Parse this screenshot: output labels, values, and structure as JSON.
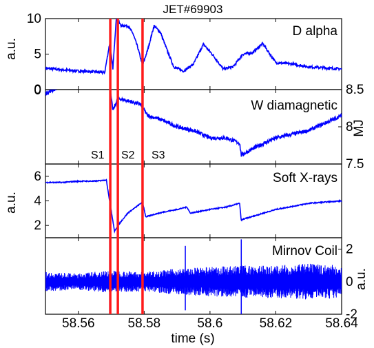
{
  "chart_data": [
    {
      "type": "line",
      "title": "JET#69903",
      "panel_label": "D alpha",
      "ylabel": "a.u.",
      "ylim": [
        0,
        10
      ],
      "yticks": [
        "0",
        "5",
        "10"
      ],
      "series": [
        {
          "x": [
            58.55,
            58.555,
            58.56,
            58.565,
            58.568,
            58.5695,
            58.5705,
            58.5715,
            58.573,
            58.575,
            58.5765,
            58.578,
            58.5795,
            58.581,
            58.583,
            58.585,
            58.587,
            58.589,
            58.592,
            58.595,
            58.598,
            58.601,
            58.604,
            58.607,
            58.61,
            58.613,
            58.616,
            58.62,
            58.625,
            58.63,
            58.64
          ],
          "y": [
            3,
            2.8,
            2.6,
            2.5,
            2.4,
            6.5,
            3,
            10,
            9,
            9,
            8,
            6,
            3.4,
            5.5,
            9,
            8,
            5.5,
            3.2,
            2.6,
            3.6,
            6.4,
            4.8,
            2.9,
            3.2,
            5.0,
            5.2,
            6.5,
            3.8,
            3.6,
            3.2,
            2.9
          ]
        }
      ]
    },
    {
      "type": "line",
      "panel_label": "W diamagnetic",
      "ylabel": "MJ",
      "y_axis_side": "right",
      "ylim": [
        7.5,
        8.5
      ],
      "yticks": [
        "7.5",
        "8",
        "8.5"
      ],
      "left_tick": "0",
      "annotations": [
        "S1",
        "S2",
        "S3"
      ],
      "series": [
        {
          "x": [
            58.55,
            58.555,
            58.56,
            58.565,
            58.568,
            58.569,
            58.5705,
            58.572,
            58.575,
            58.579,
            58.581,
            58.585,
            58.59,
            58.595,
            58.6,
            58.605,
            58.609,
            58.6095,
            58.615,
            58.62,
            58.625,
            58.63,
            58.635,
            58.64
          ],
          "y": [
            8.45,
            8.55,
            8.65,
            8.7,
            8.75,
            8.7,
            8.22,
            8.38,
            8.35,
            8.3,
            8.15,
            8.1,
            8.0,
            7.95,
            7.85,
            7.85,
            7.78,
            7.62,
            7.75,
            7.85,
            7.9,
            7.95,
            8.05,
            8.15
          ]
        }
      ]
    },
    {
      "type": "line",
      "panel_label": "Soft X-rays",
      "ylabel": "a.u.",
      "ylim": [
        1,
        7
      ],
      "yticks": [
        "2",
        "4",
        "6"
      ],
      "series": [
        {
          "x": [
            58.55,
            58.555,
            58.56,
            58.565,
            58.5685,
            58.5695,
            58.571,
            58.572,
            58.575,
            58.5795,
            58.5805,
            58.583,
            58.586,
            58.59,
            58.593,
            58.594,
            58.6,
            58.605,
            58.609,
            58.6095,
            58.61,
            58.62,
            58.63,
            58.64
          ],
          "y": [
            5.5,
            5.5,
            5.6,
            5.6,
            5.7,
            4.0,
            1.5,
            2.0,
            3.0,
            3.9,
            2.7,
            2.9,
            3.1,
            3.3,
            3.5,
            3.0,
            3.3,
            3.5,
            3.8,
            2.4,
            2.5,
            3.3,
            3.8,
            4.0
          ]
        }
      ]
    },
    {
      "type": "line",
      "panel_label": "Mirnov Coil",
      "ylabel": "a.u.",
      "y_axis_side": "right",
      "ylim": [
        -2,
        2.7
      ],
      "yticks": [
        "-2",
        "0",
        "2"
      ],
      "xlabel": "time (s)",
      "xlim": [
        58.55,
        58.64
      ],
      "xticks": [
        "58.56",
        "58.58",
        "58.6",
        "58.62",
        "58.64"
      ],
      "spikes": [
        58.5695,
        58.5795,
        58.5925,
        58.6095
      ],
      "series": [
        {
          "x": [
            58.55,
            58.56,
            58.569,
            58.58,
            58.59,
            58.6,
            58.61,
            58.62,
            58.63,
            58.64
          ],
          "y": [
            0.6,
            0.5,
            0.7,
            0.6,
            0.8,
            0.9,
            1.0,
            1.0,
            1.1,
            1.0
          ]
        }
      ]
    }
  ],
  "markers": {
    "color": "#ff1a1a",
    "x": [
      58.5697,
      58.572,
      58.5795
    ]
  },
  "colors": {
    "line": "#0000ff",
    "marker": "#ff1a1a",
    "axes": "#000000"
  }
}
